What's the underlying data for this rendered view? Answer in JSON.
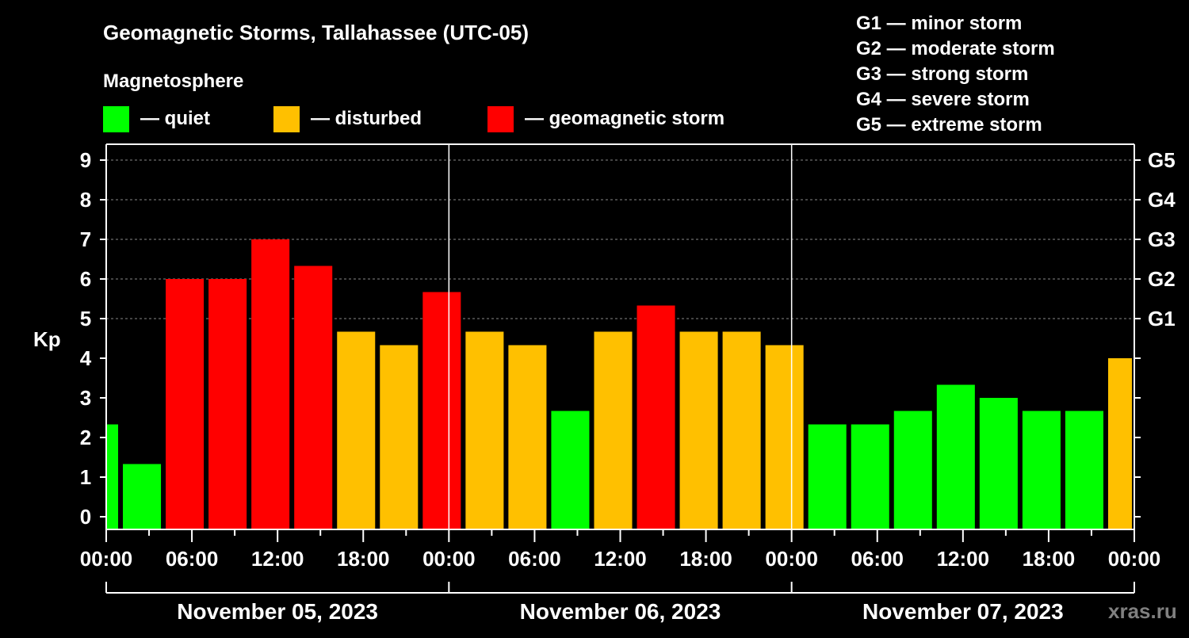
{
  "chart_data": {
    "type": "bar",
    "title": "Geomagnetic Storms, Tallahassee (UTC-05)",
    "legend_title": "Magnetosphere",
    "legend": [
      {
        "label": "— quiet",
        "color": "#00ff00"
      },
      {
        "label": "— disturbed",
        "color": "#ffc000"
      },
      {
        "label": "— geomagnetic storm",
        "color": "#ff0000"
      }
    ],
    "storm_scale": [
      "G1 — minor storm",
      "G2 — moderate storm",
      "G3 — strong storm",
      "G4 — severe storm",
      "G5 — extreme storm"
    ],
    "ylabel": "Kp",
    "ylim": [
      0,
      9
    ],
    "yticks": [
      "0",
      "1",
      "2",
      "3",
      "4",
      "5",
      "6",
      "7",
      "8",
      "9"
    ],
    "right_ticks": [
      {
        "kp": 5,
        "label": "G1"
      },
      {
        "kp": 6,
        "label": "G2"
      },
      {
        "kp": 7,
        "label": "G3"
      },
      {
        "kp": 8,
        "label": "G4"
      },
      {
        "kp": 9,
        "label": "G5"
      }
    ],
    "xlim_hours": [
      0,
      72
    ],
    "xtick_labels": [
      "00:00",
      "06:00",
      "12:00",
      "18:00",
      "00:00",
      "06:00",
      "12:00",
      "18:00",
      "00:00",
      "06:00",
      "12:00",
      "18:00",
      "00:00"
    ],
    "days": [
      "November 05, 2023",
      "November 06, 2023",
      "November 07, 2023"
    ],
    "bar_hours": 3,
    "bar_start_hours": [
      -2,
      1,
      4,
      7,
      10,
      13,
      16,
      19,
      22,
      25,
      28,
      31,
      34,
      37,
      40,
      43,
      46,
      49,
      52,
      55,
      58,
      61,
      64,
      67,
      70
    ],
    "values": [
      2.33,
      1.33,
      6,
      6,
      7,
      6.33,
      4.67,
      4.33,
      5.67,
      4.67,
      4.33,
      2.67,
      4.67,
      5.33,
      4.67,
      4.67,
      4.33,
      2.33,
      2.33,
      2.67,
      3.33,
      3,
      2.67,
      2.67,
      4
    ],
    "grid": true,
    "colors": {
      "quiet": "#00ff00",
      "disturbed": "#ffc000",
      "storm": "#ff0000"
    }
  },
  "watermark": "xras.ru"
}
